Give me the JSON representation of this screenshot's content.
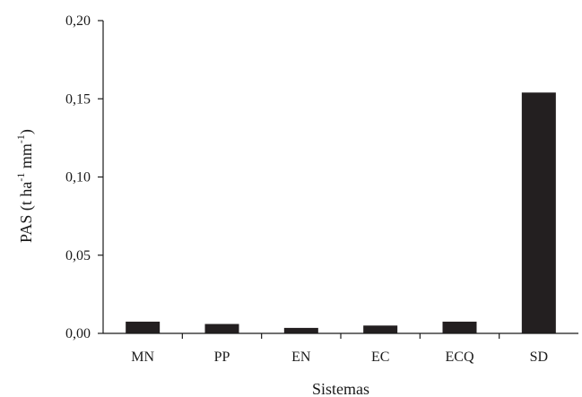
{
  "chart_data": {
    "type": "bar",
    "categories": [
      "MN",
      "PP",
      "EN",
      "EC",
      "ECQ",
      "SD"
    ],
    "values": [
      0.0075,
      0.006,
      0.0035,
      0.005,
      0.0075,
      0.154
    ],
    "xlabel": "Sistemas",
    "ylabel": {
      "prefix": "PAS (t ha",
      "exp1": "-1",
      "middle": " mm",
      "exp2": "-1",
      "suffix": ")"
    },
    "ylim": [
      0,
      0.2
    ],
    "yticks": [
      "0,00",
      "0,05",
      "0,10",
      "0,15",
      "0,20"
    ],
    "grid": false,
    "bar_color": "#231f20"
  }
}
